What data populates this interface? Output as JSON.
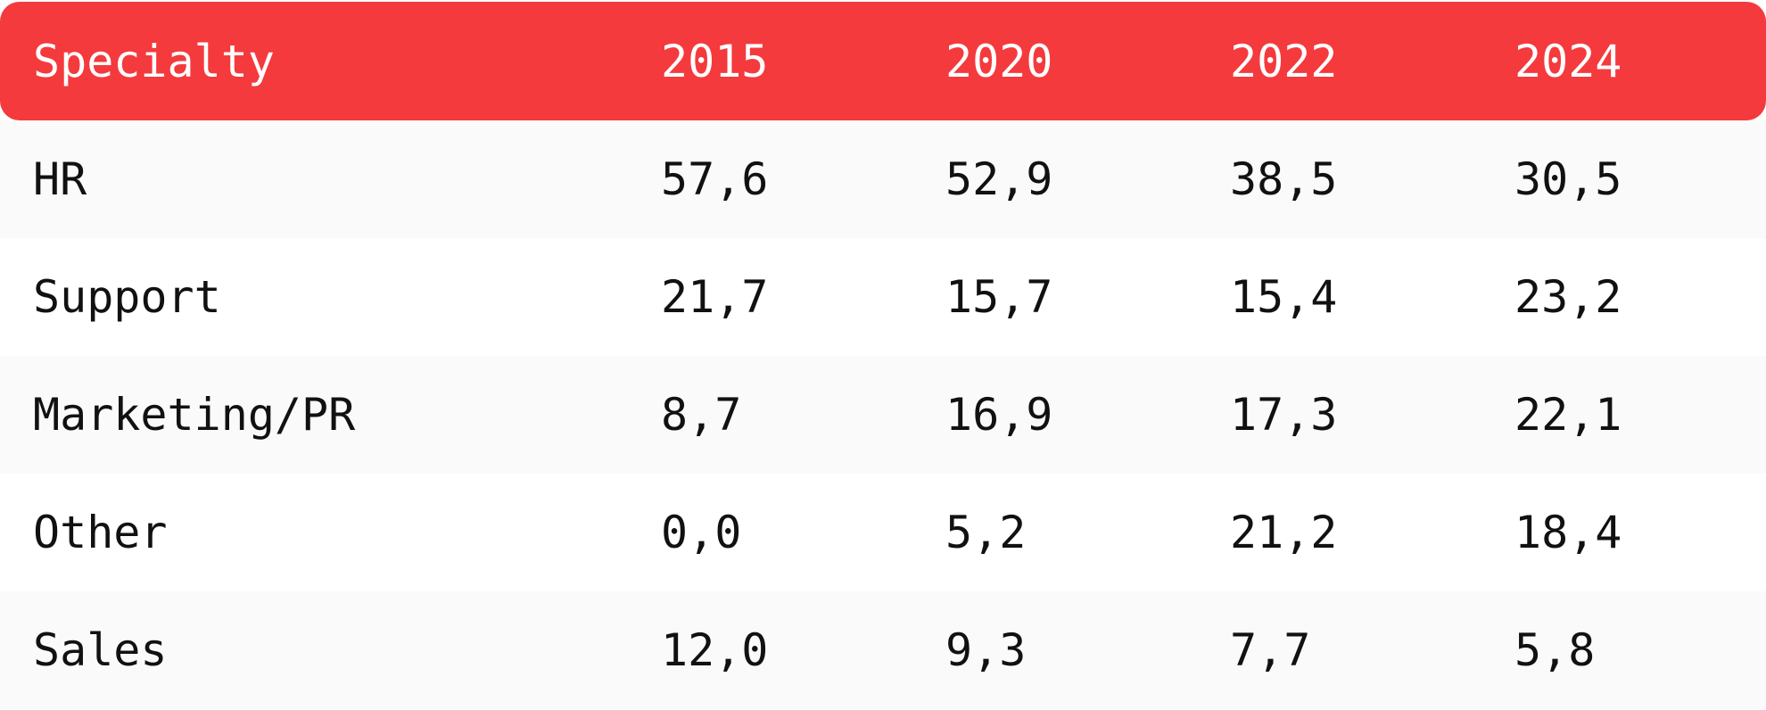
{
  "chart_data": {
    "type": "table",
    "columns": [
      "Specialty",
      "2015",
      "2020",
      "2022",
      "2024"
    ],
    "rows": [
      [
        "HR",
        "57,6",
        "52,9",
        "38,5",
        "30,5"
      ],
      [
        "Support",
        "21,7",
        "15,7",
        "15,4",
        "23,2"
      ],
      [
        "Marketing/PR",
        "8,7",
        "16,9",
        "17,3",
        "22,1"
      ],
      [
        "Other",
        "0,0",
        "5,2",
        "21,2",
        "18,4"
      ],
      [
        "Sales",
        "12,0",
        "9,3",
        "7,7",
        "5,8"
      ]
    ],
    "colors": {
      "header_background": "#f43a3d",
      "header_text": "#ffffff",
      "row_alt_background": "#fafafa",
      "body_text": "#111111"
    }
  }
}
